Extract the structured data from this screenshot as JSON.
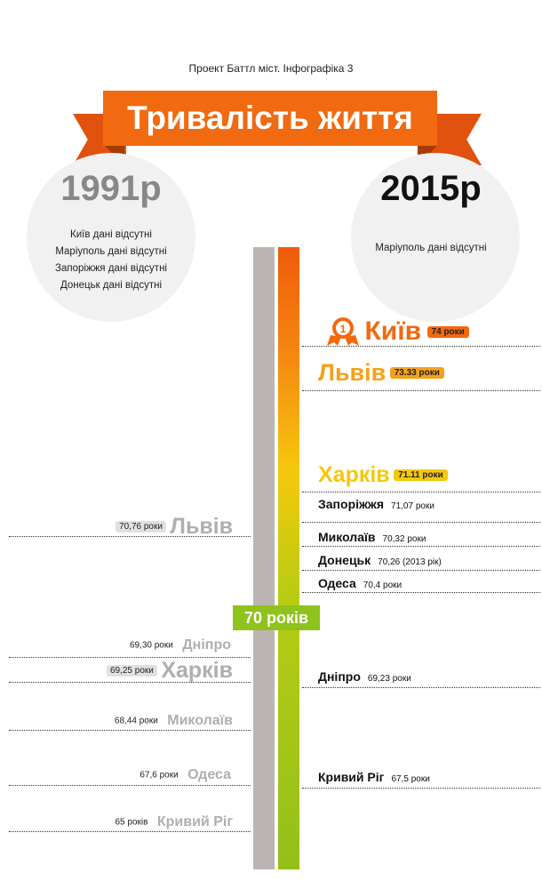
{
  "header": {
    "subtitle": "Проект Баттл міст. Інфографіка 3",
    "title": "Тривалість життя"
  },
  "left_circle": {
    "year": "1991р",
    "notes": [
      "Київ дані відсутні",
      "Маріуполь дані відсутні",
      "Запоріжжя дані відсутні",
      "Донецьк дані відсутні"
    ]
  },
  "right_circle": {
    "year": "2015р",
    "note": "Маріуполь дані відсутні"
  },
  "threshold_label": "70 років",
  "year_2015": [
    {
      "city": "Київ",
      "value": "74 роки",
      "rank": "1"
    },
    {
      "city": "Львів",
      "value": "73.33 роки"
    },
    {
      "city": "Харків",
      "value": "71.11 роки"
    },
    {
      "city": "Запоріжжя",
      "value": "71,07 роки"
    },
    {
      "city": "Миколаїв",
      "value": "70,32 роки"
    },
    {
      "city": "Донецьк",
      "value": "70,26 (2013 рік)"
    },
    {
      "city": "Одеса",
      "value": "70,4 роки"
    },
    {
      "city": "Дніпро",
      "value": "69,23 роки"
    },
    {
      "city": "Кривий Ріг",
      "value": "67,5 роки"
    }
  ],
  "year_1991": [
    {
      "city": "Львів",
      "value": "70,76 роки"
    },
    {
      "city": "Дніпро",
      "value": "69,30 роки"
    },
    {
      "city": "Харків",
      "value": "69,25 роки"
    },
    {
      "city": "Миколаїв",
      "value": "68,44 роки"
    },
    {
      "city": "Одеса",
      "value": "67,6 роки"
    },
    {
      "city": "Кривий Ріг",
      "value": "65 років"
    }
  ],
  "colors": {
    "orange": "#f26a0f",
    "amber": "#f5a11a",
    "yellow": "#f6c80c",
    "green": "#8fc21a",
    "gray": "#bbb6b4"
  }
}
